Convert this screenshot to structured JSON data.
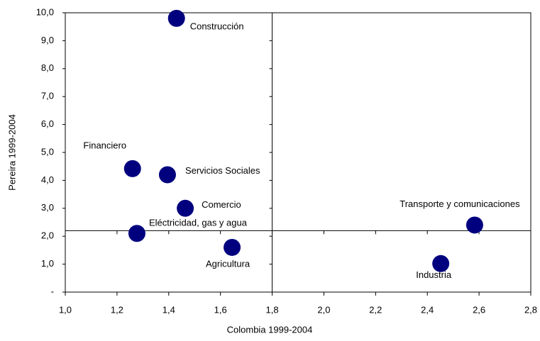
{
  "chart_data": {
    "type": "scatter",
    "xlabel": "Colombia 1999-2004",
    "ylabel": "Pereira 1999-2004",
    "categories": [
      "Construcción",
      "Financiero",
      "Servicios  Sociales",
      "Comercio",
      "Eléctricidad, gas y agua",
      "Agricultura",
      "Transporte y comunicaciones",
      "Industria"
    ],
    "x": [
      1.43,
      1.26,
      1.395,
      1.464,
      1.277,
      1.645,
      2.583,
      2.452
    ],
    "values": [
      9.8,
      4.42,
      4.2,
      3.0,
      2.1,
      1.6,
      2.4,
      1.02
    ],
    "color": "#00007f",
    "xlim": [
      1.0,
      2.8
    ],
    "xticks": [
      {
        "value": 1.0,
        "label": "1,0"
      },
      {
        "value": 1.2,
        "label": "1,2"
      },
      {
        "value": 1.4,
        "label": "1,4"
      },
      {
        "value": 1.6,
        "label": "1,6"
      },
      {
        "value": 1.8,
        "label": "1,8"
      },
      {
        "value": 2.0,
        "label": "2,0"
      },
      {
        "value": 2.2,
        "label": "2,2"
      },
      {
        "value": 2.4,
        "label": "2,4"
      },
      {
        "value": 2.6,
        "label": "2,6"
      },
      {
        "value": 2.8,
        "label": "2,8"
      }
    ],
    "ylim": [
      0,
      10
    ],
    "yticks": [
      {
        "value": 0,
        "label": "-"
      },
      {
        "value": 1,
        "label": "1,0"
      },
      {
        "value": 2,
        "label": "2,0"
      },
      {
        "value": 3,
        "label": "3,0"
      },
      {
        "value": 4,
        "label": "4,0"
      },
      {
        "value": 5,
        "label": "5,0"
      },
      {
        "value": 6,
        "label": "6,0"
      },
      {
        "value": 7,
        "label": "7,0"
      },
      {
        "value": 8,
        "label": "8,0"
      },
      {
        "value": 9,
        "label": "9,0"
      },
      {
        "value": 10,
        "label": "10,0"
      }
    ],
    "reference_x": 1.8,
    "reference_y": 2.2
  }
}
